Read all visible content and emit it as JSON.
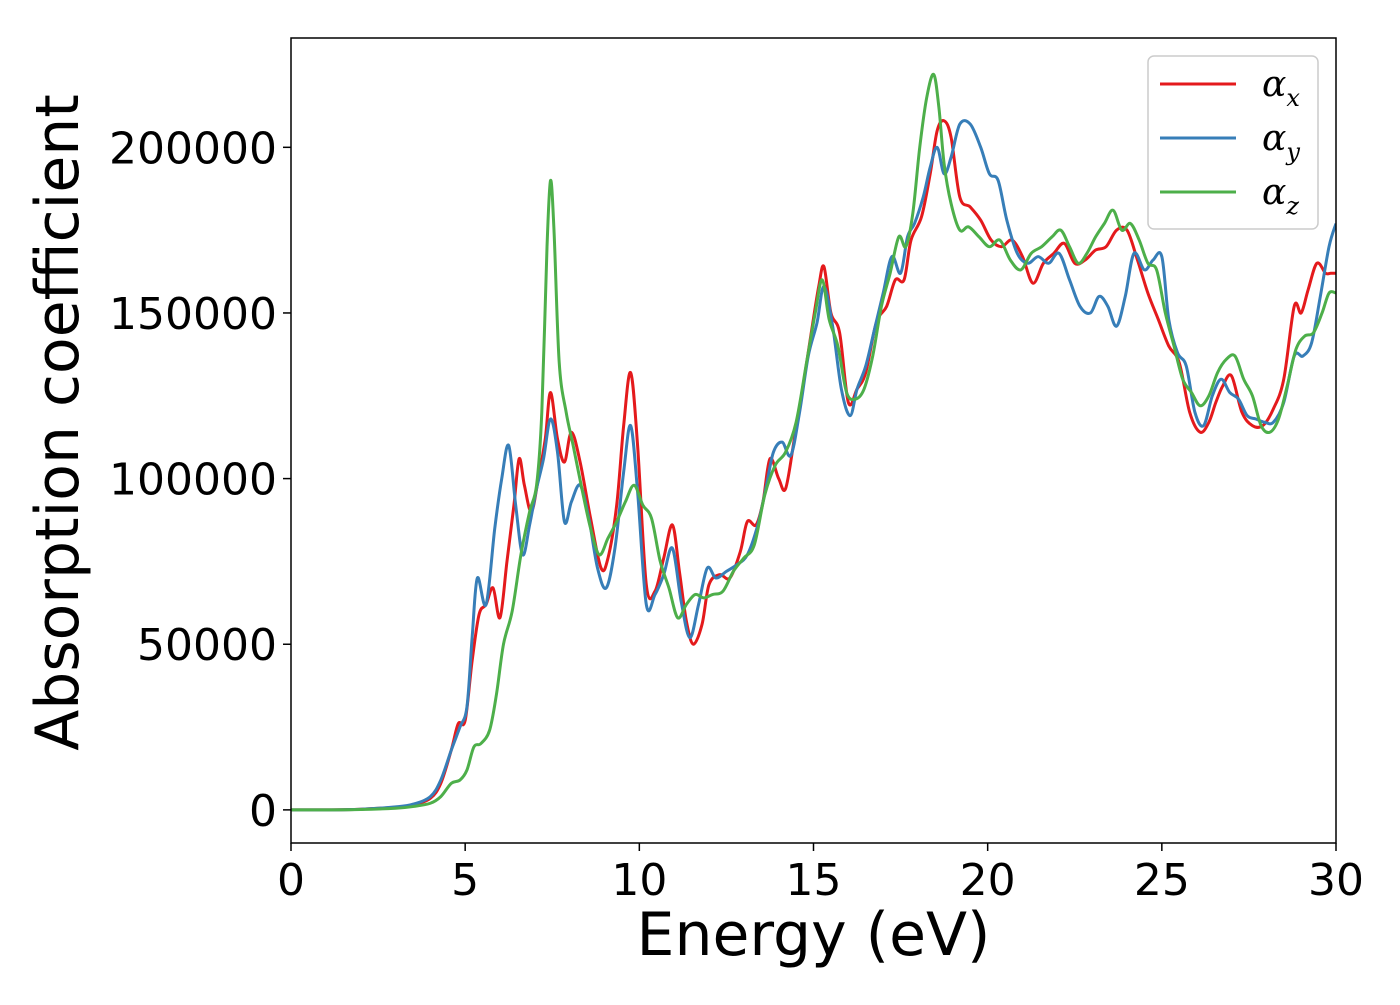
{
  "chart_data": {
    "type": "line",
    "xlabel": "Energy (eV)",
    "ylabel": "Absorption coefficient",
    "xlim": [
      0,
      30
    ],
    "ylim": [
      -10000,
      233000
    ],
    "xticks": [
      0,
      5,
      10,
      15,
      20,
      25,
      30
    ],
    "yticks": [
      0,
      50000,
      100000,
      150000,
      200000
    ],
    "grid": false,
    "legend_position": "top-right",
    "series": [
      {
        "name": "α_x",
        "label_base": "α",
        "label_sub": "x",
        "color": "#e41a1c",
        "x": [
          0,
          1,
          2,
          3,
          3.5,
          4,
          4.3,
          4.6,
          4.8,
          5.0,
          5.2,
          5.4,
          5.6,
          5.8,
          6.0,
          6.2,
          6.4,
          6.55,
          6.7,
          6.9,
          7.1,
          7.3,
          7.45,
          7.65,
          7.85,
          8.05,
          8.3,
          8.6,
          8.9,
          9.1,
          9.35,
          9.55,
          9.75,
          9.95,
          10.2,
          10.45,
          10.7,
          10.95,
          11.15,
          11.35,
          11.55,
          11.8,
          12.0,
          12.3,
          12.6,
          12.9,
          13.1,
          13.35,
          13.55,
          13.75,
          14.0,
          14.2,
          14.45,
          14.7,
          14.95,
          15.15,
          15.3,
          15.5,
          15.75,
          16.0,
          16.25,
          16.5,
          16.8,
          17.1,
          17.35,
          17.6,
          17.8,
          18.1,
          18.35,
          18.55,
          18.75,
          18.95,
          19.2,
          19.5,
          19.8,
          20.1,
          20.4,
          20.7,
          21.0,
          21.3,
          21.6,
          21.9,
          22.2,
          22.5,
          22.8,
          23.1,
          23.4,
          23.7,
          24.0,
          24.3,
          24.6,
          24.9,
          25.2,
          25.5,
          25.8,
          26.1,
          26.35,
          26.55,
          26.75,
          27.0,
          27.3,
          27.6,
          27.9,
          28.2,
          28.5,
          28.8,
          29.0,
          29.2,
          29.45,
          29.7,
          29.85,
          30.0
        ],
        "values": [
          0,
          0,
          200,
          800,
          1500,
          3500,
          8000,
          18000,
          26000,
          27000,
          45000,
          59000,
          62000,
          67000,
          58000,
          75000,
          92000,
          106000,
          98000,
          90000,
          100000,
          112000,
          126000,
          112000,
          105000,
          114000,
          105000,
          88000,
          73000,
          76000,
          92000,
          116000,
          132000,
          110000,
          68000,
          66000,
          76000,
          86000,
          72000,
          57000,
          50000,
          56000,
          68000,
          71000,
          70000,
          78000,
          87000,
          86000,
          93000,
          106000,
          100000,
          97000,
          112000,
          128000,
          145000,
          158000,
          164000,
          150000,
          144000,
          123000,
          127000,
          132000,
          147000,
          152000,
          160000,
          160000,
          172000,
          179000,
          192000,
          205000,
          208000,
          203000,
          185000,
          182000,
          178000,
          172000,
          170000,
          172000,
          167000,
          159000,
          165000,
          168000,
          171000,
          165000,
          166000,
          169000,
          170000,
          175000,
          175000,
          166000,
          156000,
          148000,
          140000,
          135000,
          120000,
          114000,
          117000,
          123000,
          128000,
          131000,
          120000,
          116000,
          116000,
          121000,
          130000,
          152000,
          150000,
          157000,
          165000,
          162000,
          162000,
          162000
        ]
      },
      {
        "name": "α_y",
        "label_base": "α",
        "label_sub": "y",
        "color": "#377eb8",
        "x": [
          0,
          1,
          2,
          3,
          3.5,
          4,
          4.3,
          4.6,
          4.85,
          5.05,
          5.2,
          5.35,
          5.6,
          5.85,
          6.05,
          6.25,
          6.45,
          6.65,
          6.85,
          7.05,
          7.25,
          7.45,
          7.65,
          7.85,
          8.05,
          8.3,
          8.55,
          8.8,
          9.05,
          9.3,
          9.55,
          9.75,
          9.95,
          10.2,
          10.45,
          10.7,
          10.95,
          11.2,
          11.45,
          11.7,
          11.95,
          12.2,
          12.5,
          12.8,
          13.1,
          13.4,
          13.65,
          13.85,
          14.1,
          14.35,
          14.6,
          14.85,
          15.1,
          15.3,
          15.55,
          15.8,
          16.05,
          16.25,
          16.5,
          16.75,
          17.0,
          17.25,
          17.5,
          17.7,
          17.9,
          18.15,
          18.35,
          18.55,
          18.75,
          18.95,
          19.2,
          19.5,
          19.8,
          20.05,
          20.3,
          20.55,
          20.85,
          21.15,
          21.45,
          21.75,
          22.05,
          22.35,
          22.65,
          22.95,
          23.2,
          23.45,
          23.7,
          23.95,
          24.2,
          24.5,
          24.75,
          25.0,
          25.2,
          25.45,
          25.7,
          25.95,
          26.2,
          26.45,
          26.7,
          26.95,
          27.2,
          27.45,
          27.7,
          27.95,
          28.2,
          28.5,
          28.8,
          29.05,
          29.3,
          29.55,
          29.8,
          30.0
        ],
        "values": [
          0,
          0,
          200,
          900,
          1700,
          4000,
          9000,
          18000,
          25000,
          31000,
          52000,
          70000,
          62000,
          85000,
          100000,
          110000,
          92000,
          77000,
          86000,
          97000,
          106000,
          118000,
          108000,
          87000,
          93000,
          98000,
          88000,
          73000,
          67000,
          79000,
          102000,
          116000,
          96000,
          62000,
          65000,
          71000,
          79000,
          63000,
          52000,
          62000,
          73000,
          70000,
          72000,
          74000,
          77000,
          86000,
          98000,
          108000,
          111000,
          107000,
          120000,
          137000,
          147000,
          158000,
          146000,
          127000,
          119000,
          127000,
          134000,
          145000,
          156000,
          167000,
          162000,
          173000,
          177000,
          185000,
          194000,
          200000,
          192000,
          197000,
          207000,
          207000,
          200000,
          192000,
          190000,
          178000,
          168000,
          165000,
          167000,
          165000,
          168000,
          160000,
          152000,
          150000,
          155000,
          152000,
          146000,
          155000,
          168000,
          163000,
          166000,
          167000,
          148000,
          138000,
          134000,
          120000,
          116000,
          125000,
          130000,
          126000,
          124000,
          119000,
          118000,
          117000,
          117000,
          123000,
          137000,
          137000,
          141000,
          155000,
          170000,
          177000
        ]
      },
      {
        "name": "α_z",
        "label_base": "α",
        "label_sub": "z",
        "color": "#4daf4a",
        "x": [
          0,
          1,
          2,
          3,
          3.5,
          4,
          4.3,
          4.6,
          4.85,
          5.05,
          5.25,
          5.45,
          5.7,
          5.9,
          6.1,
          6.35,
          6.6,
          6.85,
          7.05,
          7.2,
          7.35,
          7.45,
          7.55,
          7.7,
          7.9,
          8.1,
          8.35,
          8.6,
          8.85,
          9.1,
          9.35,
          9.6,
          9.85,
          10.1,
          10.35,
          10.6,
          10.85,
          11.1,
          11.35,
          11.6,
          11.85,
          12.1,
          12.4,
          12.7,
          13.0,
          13.3,
          13.6,
          13.9,
          14.2,
          14.5,
          14.8,
          15.05,
          15.25,
          15.45,
          15.7,
          15.95,
          16.2,
          16.45,
          16.7,
          16.95,
          17.2,
          17.45,
          17.65,
          17.85,
          18.05,
          18.25,
          18.45,
          18.6,
          18.75,
          18.95,
          19.2,
          19.45,
          19.75,
          20.05,
          20.35,
          20.65,
          20.95,
          21.25,
          21.55,
          21.85,
          22.1,
          22.35,
          22.6,
          22.85,
          23.1,
          23.35,
          23.6,
          23.85,
          24.1,
          24.35,
          24.6,
          24.85,
          25.1,
          25.35,
          25.6,
          25.85,
          26.1,
          26.35,
          26.6,
          26.85,
          27.1,
          27.35,
          27.6,
          27.85,
          28.1,
          28.35,
          28.6,
          28.85,
          29.1,
          29.35,
          29.6,
          29.8,
          30.0
        ],
        "values": [
          0,
          0,
          100,
          500,
          1000,
          2000,
          4000,
          8000,
          9000,
          12000,
          19000,
          20000,
          24000,
          35000,
          50000,
          60000,
          77000,
          90000,
          98000,
          120000,
          170000,
          190000,
          175000,
          135000,
          120000,
          110000,
          97000,
          85000,
          77000,
          82000,
          87000,
          93000,
          98000,
          92000,
          88000,
          75000,
          67000,
          58000,
          62000,
          65000,
          64000,
          65000,
          66000,
          72000,
          76000,
          80000,
          95000,
          104000,
          108000,
          117000,
          135000,
          150000,
          160000,
          148000,
          140000,
          126000,
          124000,
          127000,
          137000,
          152000,
          162000,
          173000,
          170000,
          180000,
          200000,
          215000,
          222000,
          212000,
          195000,
          183000,
          175000,
          176000,
          173000,
          170000,
          172000,
          166000,
          163000,
          168000,
          170000,
          173000,
          175000,
          170000,
          165000,
          168000,
          173000,
          177000,
          181000,
          175000,
          177000,
          172000,
          165000,
          163000,
          150000,
          140000,
          130000,
          126000,
          122000,
          125000,
          132000,
          136000,
          137000,
          130000,
          125000,
          116000,
          114000,
          118000,
          128000,
          139000,
          143000,
          144000,
          150000,
          156000,
          156000
        ]
      }
    ]
  }
}
